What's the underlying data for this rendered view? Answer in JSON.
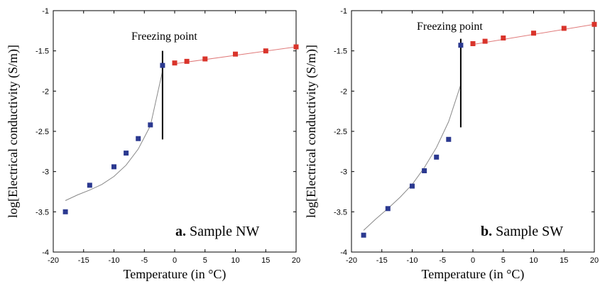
{
  "chart_data": [
    {
      "type": "scatter",
      "panel_letter": "a.",
      "panel_name": " Sample NW",
      "xlabel": "Temperature (in °C)",
      "ylabel": "log[Electrical conductivity (S/m)]",
      "xlim": [
        -20,
        20
      ],
      "ylim": [
        -4,
        -1
      ],
      "xticks": [
        -20,
        -15,
        -10,
        -5,
        0,
        5,
        10,
        15,
        20
      ],
      "yticks": [
        -4,
        -3.5,
        -3,
        -2.5,
        -2,
        -1.5,
        -1
      ],
      "annotation": "Freezing point",
      "freezing_line": {
        "x": -2,
        "y_from": -2.6,
        "y_to": -1.5
      },
      "series": [
        {
          "color": "#2b3990",
          "marker": "square",
          "points": [
            [
              -18,
              -3.5
            ],
            [
              -14,
              -3.17
            ],
            [
              -10,
              -2.94
            ],
            [
              -8,
              -2.77
            ],
            [
              -6,
              -2.59
            ],
            [
              -4,
              -2.42
            ],
            [
              -2,
              -1.68
            ]
          ]
        },
        {
          "color": "#d9342b",
          "marker": "square",
          "points": [
            [
              0,
              -1.65
            ],
            [
              2,
              -1.63
            ],
            [
              5,
              -1.6
            ],
            [
              10,
              -1.54
            ],
            [
              15,
              -1.5
            ],
            [
              20,
              -1.45
            ]
          ]
        }
      ],
      "fit_frozen": {
        "color": "#888888",
        "points": [
          [
            -18,
            -3.36
          ],
          [
            -16,
            -3.29
          ],
          [
            -14,
            -3.23
          ],
          [
            -12,
            -3.16
          ],
          [
            -10,
            -3.06
          ],
          [
            -8,
            -2.92
          ],
          [
            -6,
            -2.72
          ],
          [
            -4,
            -2.43
          ],
          [
            -2,
            -1.75
          ]
        ]
      },
      "fit_liquid": {
        "color": "#e07a7a",
        "points": [
          [
            0,
            -1.66
          ],
          [
            20,
            -1.45
          ]
        ]
      }
    },
    {
      "type": "scatter",
      "panel_letter": "b.",
      "panel_name": " Sample SW",
      "xlabel": "Temperature (in °C)",
      "ylabel": "log[Electrical conductivity (S/m)]",
      "xlim": [
        -20,
        20
      ],
      "ylim": [
        -4,
        -1
      ],
      "xticks": [
        -20,
        -15,
        -10,
        -5,
        0,
        5,
        10,
        15,
        20
      ],
      "yticks": [
        -4,
        -3.5,
        -3,
        -2.5,
        -2,
        -1.5,
        -1
      ],
      "annotation": "Freezing point",
      "freezing_line": {
        "x": -2,
        "y_from": -2.45,
        "y_to": -1.35
      },
      "series": [
        {
          "color": "#2b3990",
          "marker": "square",
          "points": [
            [
              -18,
              -3.79
            ],
            [
              -14,
              -3.46
            ],
            [
              -10,
              -3.18
            ],
            [
              -8,
              -2.99
            ],
            [
              -6,
              -2.82
            ],
            [
              -4,
              -2.6
            ],
            [
              -2,
              -1.43
            ]
          ]
        },
        {
          "color": "#d9342b",
          "marker": "square",
          "points": [
            [
              0,
              -1.41
            ],
            [
              2,
              -1.38
            ],
            [
              5,
              -1.34
            ],
            [
              10,
              -1.28
            ],
            [
              15,
              -1.22
            ],
            [
              20,
              -1.17
            ]
          ]
        }
      ],
      "fit_frozen": {
        "color": "#888888",
        "points": [
          [
            -18,
            -3.73
          ],
          [
            -16,
            -3.59
          ],
          [
            -14,
            -3.46
          ],
          [
            -12,
            -3.32
          ],
          [
            -10,
            -3.16
          ],
          [
            -8,
            -2.95
          ],
          [
            -6,
            -2.7
          ],
          [
            -4,
            -2.38
          ],
          [
            -2,
            -1.92
          ]
        ]
      },
      "fit_liquid": {
        "color": "#e07a7a",
        "points": [
          [
            0,
            -1.42
          ],
          [
            20,
            -1.17
          ]
        ]
      }
    }
  ]
}
